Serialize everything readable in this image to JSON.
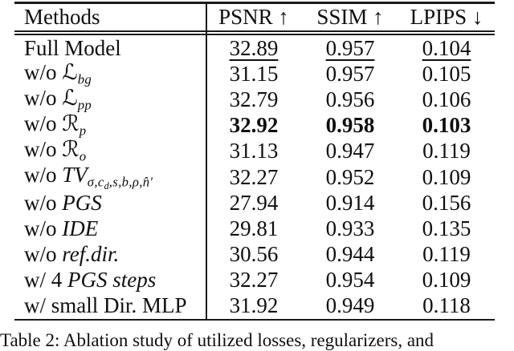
{
  "table": {
    "headers": {
      "methods": "Methods",
      "psnr": "PSNR ↑",
      "ssim": "SSIM ↑",
      "lpips": "LPIPS ↓"
    },
    "rows": [
      {
        "label_parts": [
          {
            "t": "Full Model",
            "s": "r"
          }
        ],
        "psnr": "32.89",
        "ssim": "0.957",
        "lpips": "0.104",
        "emphasis": "underline"
      },
      {
        "label_parts": [
          {
            "t": "w/o ",
            "s": "r"
          },
          {
            "t": "ℒ",
            "s": "cal"
          },
          {
            "t": "bg",
            "s": "sub"
          }
        ],
        "psnr": "31.15",
        "ssim": "0.957",
        "lpips": "0.105",
        "emphasis": "none"
      },
      {
        "label_parts": [
          {
            "t": "w/o ",
            "s": "r"
          },
          {
            "t": "ℒ",
            "s": "cal"
          },
          {
            "t": "pp",
            "s": "sub"
          }
        ],
        "psnr": "32.79",
        "ssim": "0.956",
        "lpips": "0.106",
        "emphasis": "none"
      },
      {
        "label_parts": [
          {
            "t": "w/o ",
            "s": "r"
          },
          {
            "t": "ℛ",
            "s": "cal"
          },
          {
            "t": "p",
            "s": "sub"
          }
        ],
        "psnr": "32.92",
        "ssim": "0.958",
        "lpips": "0.103",
        "emphasis": "bold"
      },
      {
        "label_parts": [
          {
            "t": "w/o ",
            "s": "r"
          },
          {
            "t": "ℛ",
            "s": "cal"
          },
          {
            "t": "o",
            "s": "sub"
          }
        ],
        "psnr": "31.13",
        "ssim": "0.947",
        "lpips": "0.119",
        "emphasis": "none"
      },
      {
        "label_parts": [
          {
            "t": "w/o ",
            "s": "r"
          },
          {
            "t": "TV",
            "s": "i"
          },
          {
            "t": "σ,c",
            "s": "sub"
          },
          {
            "t": "d",
            "s": "sub2"
          },
          {
            "t": ",s,b,ρ,n̂′",
            "s": "sub"
          }
        ],
        "psnr": "32.27",
        "ssim": "0.952",
        "lpips": "0.109",
        "emphasis": "none"
      },
      {
        "label_parts": [
          {
            "t": "w/o ",
            "s": "r"
          },
          {
            "t": "PGS",
            "s": "i"
          }
        ],
        "psnr": "27.94",
        "ssim": "0.914",
        "lpips": "0.156",
        "emphasis": "none"
      },
      {
        "label_parts": [
          {
            "t": "w/o ",
            "s": "r"
          },
          {
            "t": "IDE",
            "s": "i"
          }
        ],
        "psnr": "29.81",
        "ssim": "0.933",
        "lpips": "0.135",
        "emphasis": "none"
      },
      {
        "label_parts": [
          {
            "t": "w/o ",
            "s": "r"
          },
          {
            "t": "ref.dir.",
            "s": "i"
          }
        ],
        "psnr": "30.56",
        "ssim": "0.944",
        "lpips": "0.119",
        "emphasis": "none"
      },
      {
        "label_parts": [
          {
            "t": "w/ 4 ",
            "s": "r"
          },
          {
            "t": "PGS steps",
            "s": "i"
          }
        ],
        "psnr": "32.27",
        "ssim": "0.954",
        "lpips": "0.109",
        "emphasis": "none"
      },
      {
        "label_parts": [
          {
            "t": "w/ small Dir. MLP",
            "s": "r"
          }
        ],
        "psnr": "31.92",
        "ssim": "0.949",
        "lpips": "0.118",
        "emphasis": "none"
      }
    ]
  },
  "caption": "Table 2:  Ablation study of utilized losses, regularizers, and",
  "colors": {
    "text": "#0f0f0f",
    "rule": "#1a1a1a",
    "background": "#ffffff"
  }
}
